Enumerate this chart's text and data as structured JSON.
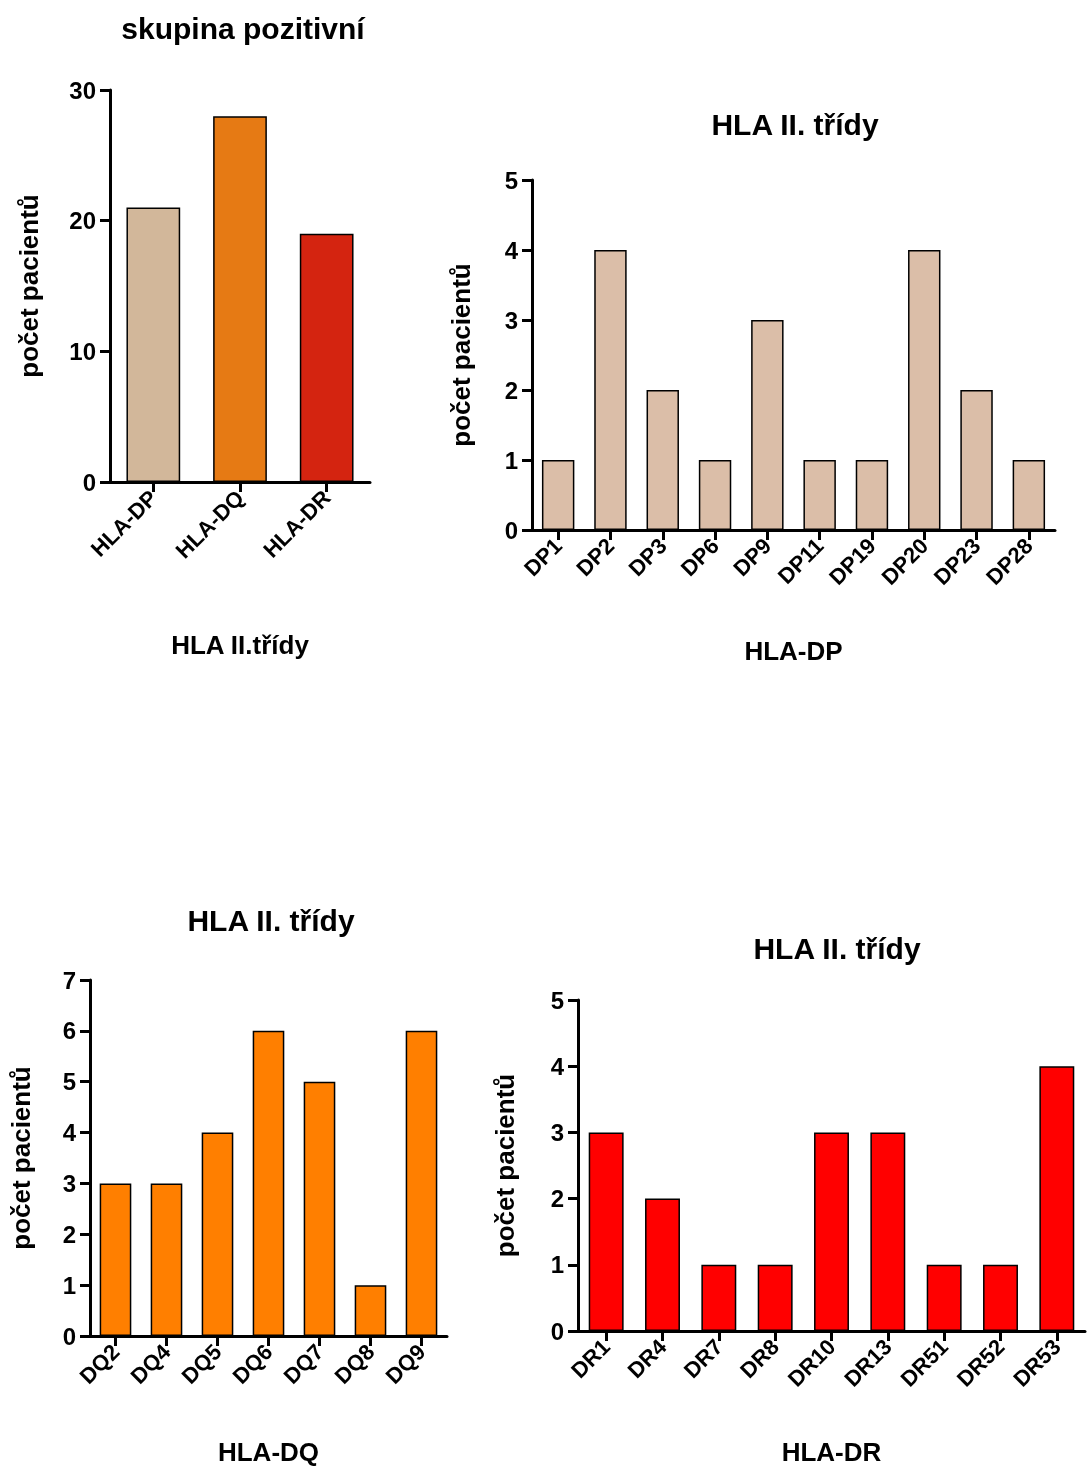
{
  "chart_data": [
    {
      "type": "bar",
      "title": "skupina pozitivní",
      "xlabel": "HLA II.třídy",
      "ylabel": "počet pacientů",
      "categories": [
        "HLA-DP",
        "HLA-DQ",
        "HLA-DR"
      ],
      "values": [
        21,
        28,
        19
      ],
      "colors": [
        "#d2b79a",
        "#e67a14",
        "#d42410"
      ],
      "ylim": [
        0,
        30
      ],
      "yticks": [
        0,
        10,
        20,
        30
      ],
      "grid": false
    },
    {
      "type": "bar",
      "title": "HLA II. třídy",
      "xlabel": "HLA-DP",
      "ylabel": "počet pacientů",
      "categories": [
        "DP1",
        "DP2",
        "DP3",
        "DP6",
        "DP9",
        "DP11",
        "DP19",
        "DP20",
        "DP23",
        "DP28"
      ],
      "values": [
        1,
        4,
        2,
        1,
        3,
        1,
        1,
        4,
        2,
        1
      ],
      "color": "#dbbea8",
      "ylim": [
        0,
        5
      ],
      "yticks": [
        0,
        1,
        2,
        3,
        4,
        5
      ],
      "grid": false
    },
    {
      "type": "bar",
      "title": "HLA II. třídy",
      "xlabel": "HLA-DQ",
      "ylabel": "počet pacientů",
      "categories": [
        "DQ2",
        "DQ4",
        "DQ5",
        "DQ6",
        "DQ7",
        "DQ8",
        "DQ9"
      ],
      "values": [
        3,
        3,
        4,
        6,
        5,
        1,
        6
      ],
      "color": "#ff7f00",
      "ylim": [
        0,
        7
      ],
      "yticks": [
        0,
        1,
        2,
        3,
        4,
        5,
        6,
        7
      ],
      "grid": false
    },
    {
      "type": "bar",
      "title": "HLA II. třídy",
      "xlabel": "HLA-DR",
      "ylabel": "počet pacientů",
      "categories": [
        "DR1",
        "DR4",
        "DR7",
        "DR8",
        "DR10",
        "DR13",
        "DR51",
        "DR52",
        "DR53"
      ],
      "values": [
        3,
        2,
        1,
        1,
        3,
        3,
        1,
        1,
        4
      ],
      "color": "#ff0000",
      "ylim": [
        0,
        5
      ],
      "yticks": [
        0,
        1,
        2,
        3,
        4,
        5
      ],
      "grid": false
    }
  ]
}
